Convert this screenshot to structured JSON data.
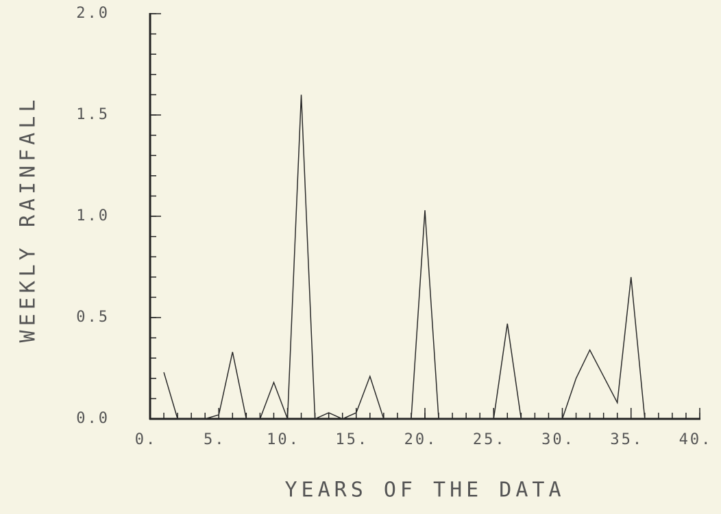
{
  "chart_data": {
    "type": "line",
    "xlabel": "YEARS OF THE DATA",
    "ylabel": "WEEKLY RAINFALL",
    "x": [
      1,
      2,
      3,
      4,
      5,
      6,
      7,
      8,
      9,
      10,
      11,
      12,
      13,
      14,
      15,
      16,
      17,
      18,
      19,
      20,
      21,
      22,
      23,
      24,
      25,
      26,
      27,
      28,
      29,
      30,
      31,
      32,
      33,
      34,
      35,
      36
    ],
    "values": [
      0.23,
      0,
      0,
      0,
      0.02,
      0.33,
      0,
      0,
      0.18,
      0,
      1.6,
      0,
      0.03,
      0,
      0.03,
      0.21,
      0,
      0,
      0,
      1.03,
      0,
      0,
      0,
      0,
      0,
      0.47,
      0,
      0,
      0,
      0,
      0.2,
      0.34,
      0.21,
      0.08,
      0.7,
      0
    ],
    "color": "#2a2a2a",
    "xlim": [
      0,
      40
    ],
    "ylim": [
      0,
      2
    ],
    "xticks": [
      {
        "value": 0,
        "label": "0."
      },
      {
        "value": 5,
        "label": "5."
      },
      {
        "value": 10,
        "label": "10."
      },
      {
        "value": 15,
        "label": "15."
      },
      {
        "value": 20,
        "label": "20."
      },
      {
        "value": 25,
        "label": "25."
      },
      {
        "value": 30,
        "label": "30."
      },
      {
        "value": 35,
        "label": "35."
      },
      {
        "value": 40,
        "label": "40."
      }
    ],
    "yticks": [
      {
        "value": 0,
        "label": "0.0"
      },
      {
        "value": 0.5,
        "label": "0.5"
      },
      {
        "value": 1,
        "label": "1.0"
      },
      {
        "value": 1.5,
        "label": "1.5"
      },
      {
        "value": 2,
        "label": "2.0"
      }
    ],
    "xminorticks": [
      0,
      1,
      2,
      3,
      4,
      5,
      6,
      7,
      8,
      9,
      10,
      11,
      12,
      13,
      14,
      15,
      16,
      17,
      18,
      19,
      20,
      21,
      22,
      23,
      24,
      25,
      26,
      27,
      28,
      29,
      30,
      31,
      32,
      33,
      34,
      35,
      36,
      37,
      38,
      39,
      40
    ],
    "yminorticks": [
      0,
      0.1,
      0.2,
      0.3,
      0.4,
      0.5,
      0.6,
      0.7,
      0.8,
      0.9,
      1,
      1.1,
      1.2,
      1.3,
      1.4,
      1.5,
      1.6,
      1.7,
      1.8,
      1.9,
      2
    ],
    "grid": false
  }
}
